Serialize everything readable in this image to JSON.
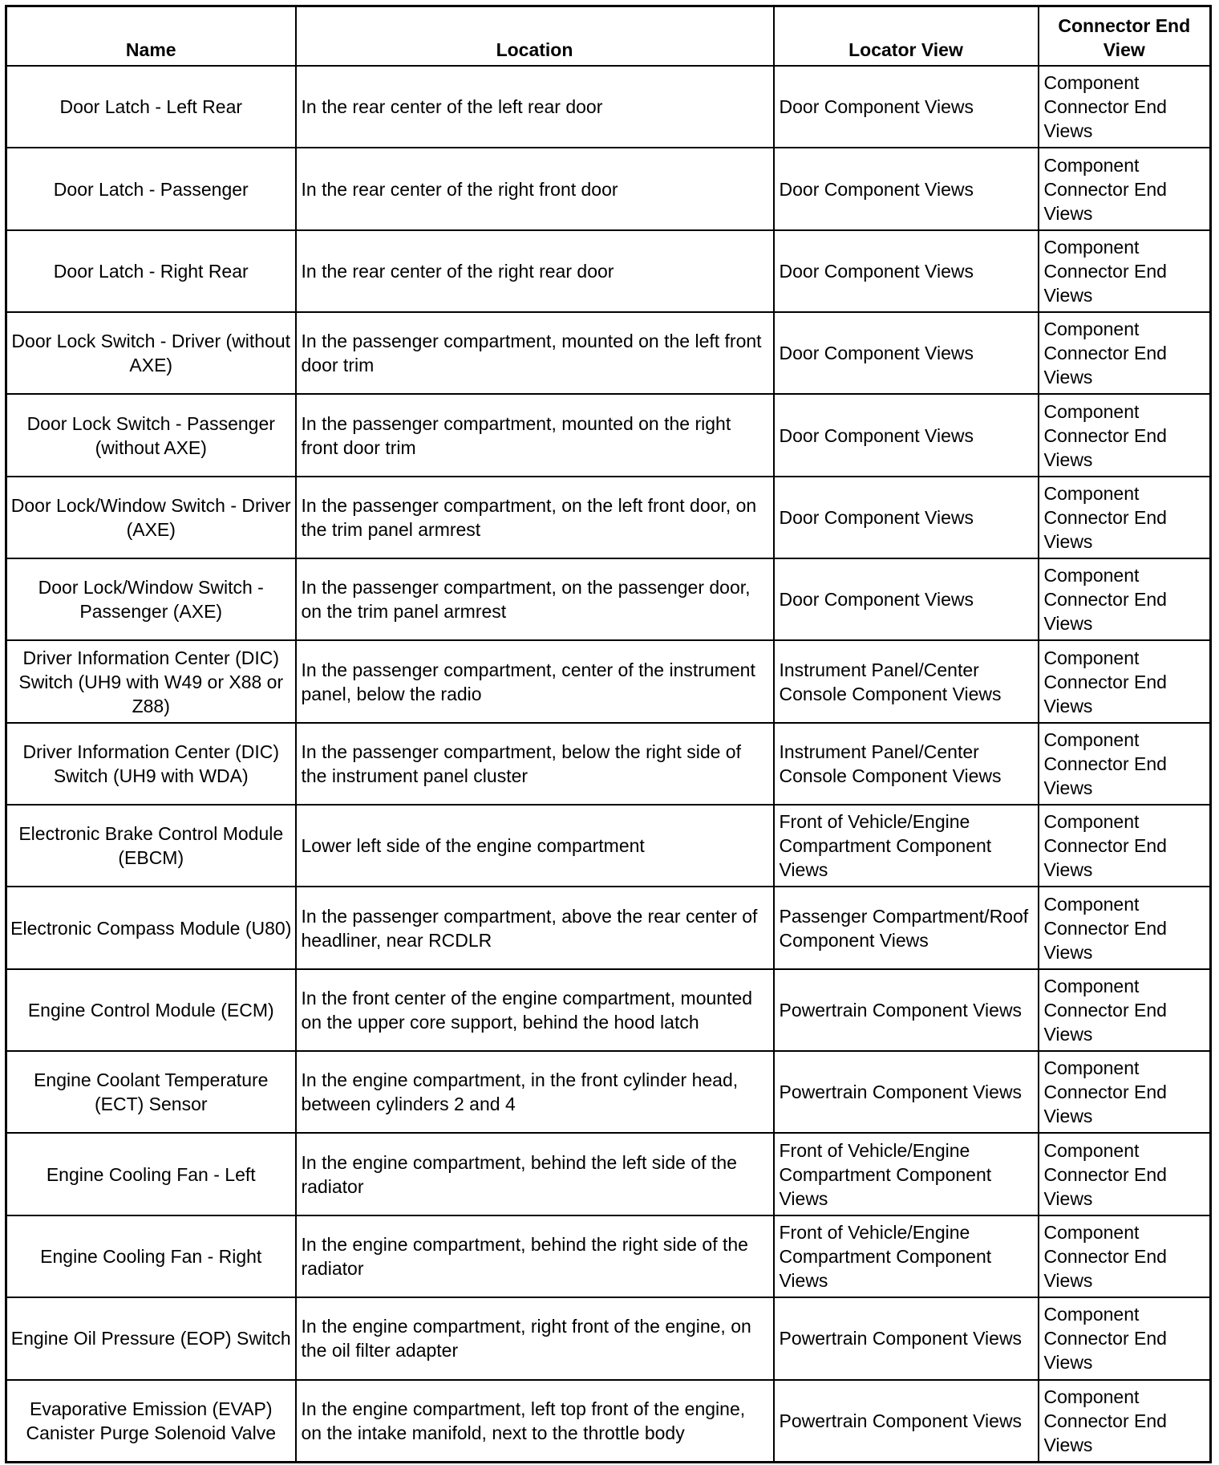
{
  "table": {
    "headers": [
      "Name",
      "Location",
      "Locator View",
      "Connector End View"
    ],
    "rows": [
      {
        "name": "Door Latch - Left Rear",
        "location": "In the rear center of the left rear door",
        "locator_view": "Door Component Views",
        "connector_end_view": "Component Connector End Views"
      },
      {
        "name": "Door Latch - Passenger",
        "location": "In the rear center of the right front door",
        "locator_view": "Door Component Views",
        "connector_end_view": "Component Connector End Views"
      },
      {
        "name": "Door Latch - Right Rear",
        "location": "In the rear center of the right rear door",
        "locator_view": "Door Component Views",
        "connector_end_view": "Component Connector End Views"
      },
      {
        "name": "Door Lock Switch - Driver (without AXE)",
        "location": "In the passenger compartment, mounted on the left front door trim",
        "locator_view": "Door Component Views",
        "connector_end_view": "Component Connector End Views"
      },
      {
        "name": "Door Lock Switch - Passenger (without AXE)",
        "location": "In the passenger compartment, mounted on the right front door trim",
        "locator_view": "Door Component Views",
        "connector_end_view": "Component Connector End Views"
      },
      {
        "name": "Door Lock/Window Switch - Driver (AXE)",
        "location": "In the passenger compartment, on the left front door, on the trim panel armrest",
        "locator_view": "Door Component Views",
        "connector_end_view": "Component Connector End Views"
      },
      {
        "name": "Door Lock/Window Switch - Passenger (AXE)",
        "location": "In the passenger compartment, on the passenger door, on the trim panel armrest",
        "locator_view": "Door Component Views",
        "connector_end_view": "Component Connector End Views"
      },
      {
        "name": "Driver Information Center (DIC) Switch (UH9 with W49 or X88 or Z88)",
        "location": "In the passenger compartment, center of the instrument panel, below the radio",
        "locator_view": "Instrument Panel/Center Console Component Views",
        "connector_end_view": "Component Connector End Views"
      },
      {
        "name": "Driver Information Center (DIC) Switch (UH9 with WDA)",
        "location": "In the passenger compartment, below the right side of the instrument panel cluster",
        "locator_view": "Instrument Panel/Center Console Component Views",
        "connector_end_view": "Component Connector End Views"
      },
      {
        "name": "Electronic Brake Control Module (EBCM)",
        "location": "Lower left side of the engine compartment",
        "locator_view": "Front of Vehicle/Engine Compartment Component Views",
        "connector_end_view": "Component Connector End Views"
      },
      {
        "name": "Electronic Compass Module (U80)",
        "location": "In the passenger compartment, above the rear center of headliner, near RCDLR",
        "locator_view": "Passenger Compartment/Roof Component Views",
        "connector_end_view": "Component Connector End Views"
      },
      {
        "name": "Engine Control Module (ECM)",
        "location": "In the front center of the engine compartment, mounted on the upper core support, behind the hood latch",
        "locator_view": "Powertrain Component Views",
        "connector_end_view": "Component Connector End Views"
      },
      {
        "name": "Engine Coolant Temperature (ECT) Sensor",
        "location": "In the engine compartment, in the front cylinder head, between cylinders 2 and 4",
        "locator_view": "Powertrain Component Views",
        "connector_end_view": "Component Connector End Views"
      },
      {
        "name": "Engine Cooling Fan - Left",
        "location": "In the engine compartment, behind the left side of the radiator",
        "locator_view": "Front of Vehicle/Engine Compartment Component Views",
        "connector_end_view": "Component Connector End Views"
      },
      {
        "name": "Engine Cooling Fan - Right",
        "location": "In the engine compartment, behind the right side of the radiator",
        "locator_view": "Front of Vehicle/Engine Compartment Component Views",
        "connector_end_view": "Component Connector End Views"
      },
      {
        "name": "Engine Oil Pressure (EOP) Switch",
        "location": "In the engine compartment, right front of the engine, on the oil filter adapter",
        "locator_view": "Powertrain Component Views",
        "connector_end_view": "Component Connector End Views"
      },
      {
        "name": "Evaporative Emission (EVAP) Canister Purge Solenoid Valve",
        "location": "In the engine compartment, left top front of the engine, on the intake manifold, next to the throttle body",
        "locator_view": "Powertrain Component Views",
        "connector_end_view": "Component Connector End Views"
      }
    ]
  }
}
